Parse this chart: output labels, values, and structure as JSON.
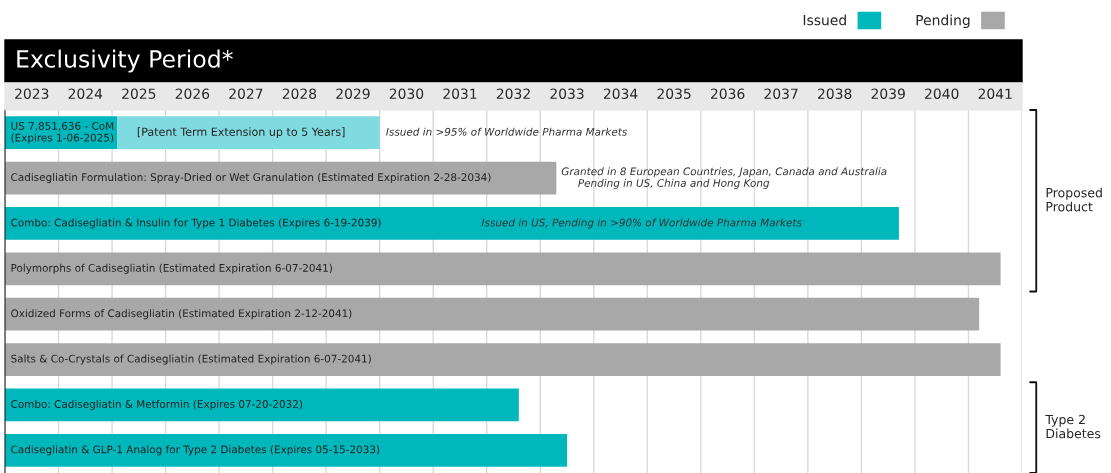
{
  "chart_data": {
    "type": "bar",
    "orientation": "horizontal",
    "title": "Exclusivity Period*",
    "categories": [
      "US 7,851,636 - CoM\n(Expires 1-06-2025)",
      "Cadisegliatin Formulation: Spray-Dried or Wet Granulation (Estimated Expiration 2-28-2034)",
      "Combo: Cadisegliatin & Insulin for Type 1 Diabetes (Expires 6-19-2039)",
      "Polymorphs of Cadisegliatin (Estimated Expiration 6-07-2041)",
      "Oxidized Forms of Cadisegliatin (Estimated Expiration 2-12-2041)",
      "Salts & Co-Crystals of Cadisegliatin (Estimated Expiration 6-07-2041)",
      "Combo: Cadisegliatin & Metformin (Expires 07-20-2032)",
      "Cadisegliatin & GLP-1 Analog for Type 2 Diabetes (Expires 05-15-2033)"
    ],
    "series": [
      {
        "name": "Issued",
        "color": "#00b8bc",
        "values": [
          2.1,
          null,
          16.7,
          null,
          null,
          null,
          9.6,
          10.5
        ],
        "base": [
          2023,
          null,
          2023,
          null,
          null,
          null,
          2023,
          2023
        ]
      },
      {
        "name": "Pending",
        "color": "#a8a8a8",
        "values": [
          null,
          10.3,
          null,
          18.6,
          18.2,
          18.6,
          null,
          null
        ],
        "base": [
          null,
          2023,
          null,
          2023,
          2023,
          2023,
          null,
          null
        ]
      },
      {
        "color": "#80dbe0",
        "values": [
          4.9,
          null,
          null,
          null,
          null,
          null,
          null,
          null
        ],
        "base": [
          2025.1,
          null,
          null,
          null,
          null,
          null,
          null,
          null
        ],
        "value_labels": [
          "[Patent Term Extension up to 5 Years]",
          null,
          null,
          null,
          null,
          null,
          null,
          null
        ]
      }
    ],
    "xlim": [
      2023,
      2042
    ],
    "xticks": [
      {
        "value": 2023.5,
        "label": "2023"
      },
      {
        "value": 2024.5,
        "label": "2024"
      },
      {
        "value": 2025.5,
        "label": "2025"
      },
      {
        "value": 2026.5,
        "label": "2026"
      },
      {
        "value": 2027.5,
        "label": "2027"
      },
      {
        "value": 2028.5,
        "label": "2028"
      },
      {
        "value": 2029.5,
        "label": "2029"
      },
      {
        "value": 2030.5,
        "label": "2030"
      },
      {
        "value": 2031.5,
        "label": "2031"
      },
      {
        "value": 2032.5,
        "label": "2032"
      },
      {
        "value": 2033.5,
        "label": "2033"
      },
      {
        "value": 2034.5,
        "label": "2034"
      },
      {
        "value": 2035.5,
        "label": "2035"
      },
      {
        "value": 2036.5,
        "label": "2036"
      },
      {
        "value": 2037.5,
        "label": "2037"
      },
      {
        "value": 2038.5,
        "label": "2038"
      },
      {
        "value": 2039.5,
        "label": "2039"
      },
      {
        "value": 2040.5,
        "label": "2040"
      },
      {
        "value": 2041.5,
        "label": "2041"
      }
    ],
    "grid": "x",
    "tick_labels": "x",
    "legend": "top right",
    "annotations": [
      "Issued in >95% of Worldwide Pharma Markets",
      "Granted in 8 European Countries, Japan, Canada and Australia\n     Pending in US, China and Hong Kong",
      "Issued in US, Pending in >90% of Worldwide Pharma Markets",
      "Proposed\nProduct",
      "Type 2\nDiabetes"
    ]
  }
}
